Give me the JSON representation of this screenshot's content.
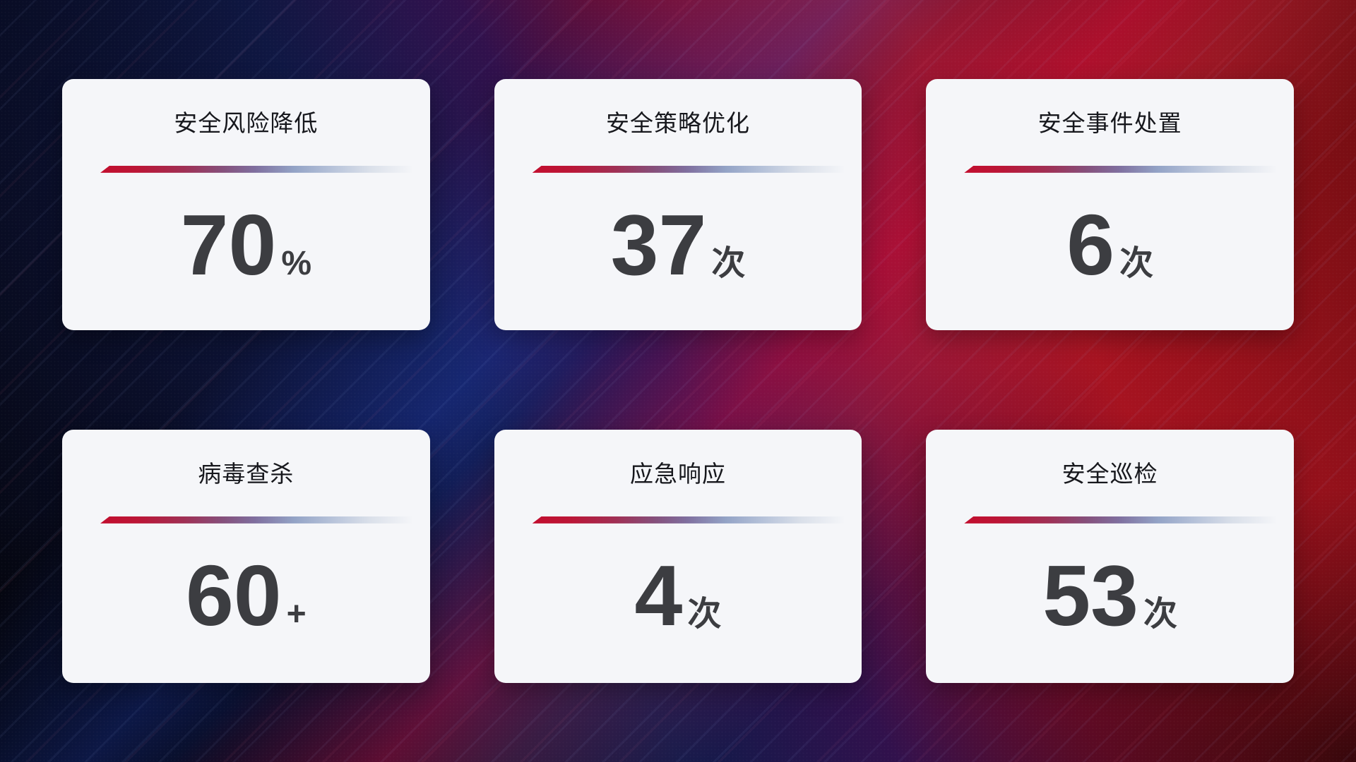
{
  "cards": [
    {
      "title": "安全风险降低",
      "value": "70",
      "unit": "%"
    },
    {
      "title": "安全策略优化",
      "value": "37",
      "unit": "次"
    },
    {
      "title": "安全事件处置",
      "value": "6",
      "unit": "次"
    },
    {
      "title": "病毒查杀",
      "value": "60",
      "unit": "+"
    },
    {
      "title": "应急响应",
      "value": "4",
      "unit": "次"
    },
    {
      "title": "安全巡检",
      "value": "53",
      "unit": "次"
    }
  ],
  "colors": {
    "card_background": "#f5f6f9",
    "title_text": "#17181d",
    "value_text": "#3c3d41",
    "divider_gradient_start_red": "#c20e2e",
    "divider_gradient_mid_slate_blue": "#93a3c6",
    "divider_gradient_end_fade": "rgba(245,246,249,0)",
    "background_navy": "#0a0e28",
    "background_blue_band": "#16246b",
    "background_crimson_band": "#a81223",
    "background_dark_red": "#6e0d10"
  }
}
